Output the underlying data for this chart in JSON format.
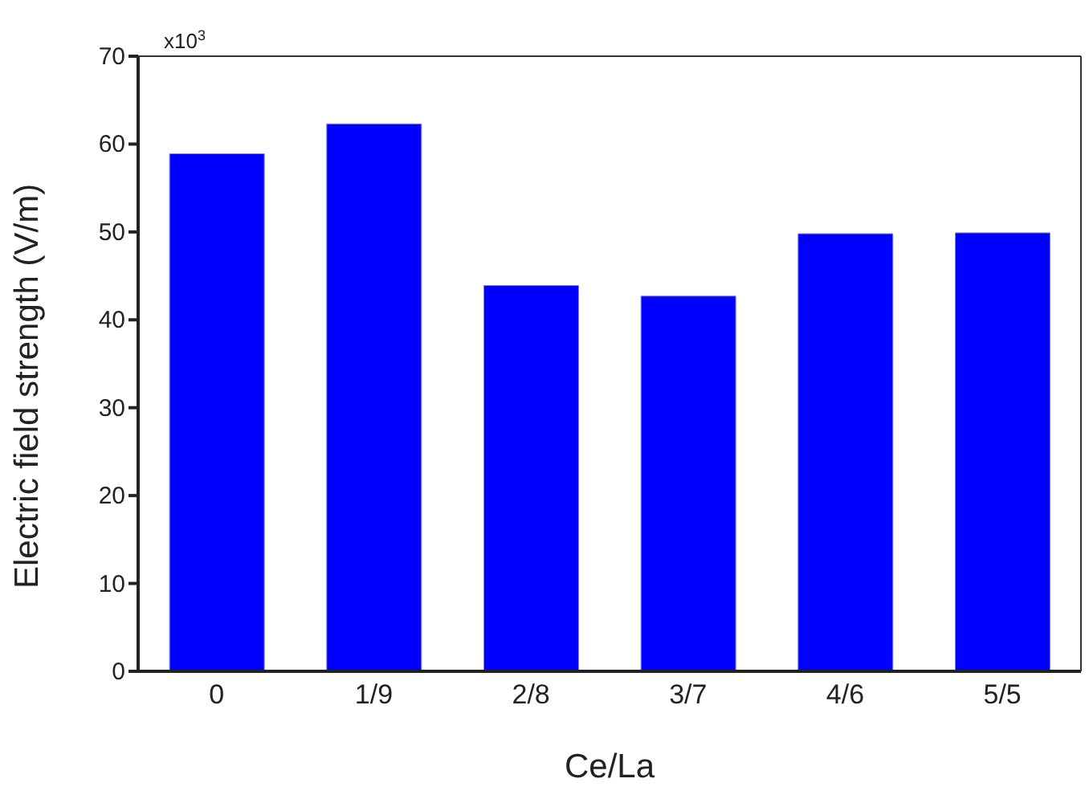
{
  "chart_data": {
    "type": "bar",
    "xlabel": "Ce/La",
    "ylabel": "Electric field strength (V/m)",
    "categories": [
      "0",
      "1/9",
      "2/8",
      "3/7",
      "4/6",
      "5/5"
    ],
    "values": [
      58.9,
      62.3,
      43.9,
      42.7,
      49.8,
      49.9
    ],
    "color": "#0000ff",
    "ylim": [
      0,
      70
    ],
    "yticks": [
      0,
      10,
      20,
      30,
      40,
      50,
      60,
      70
    ],
    "annotations": [
      "x10$^{3}$"
    ],
    "grid": false
  }
}
